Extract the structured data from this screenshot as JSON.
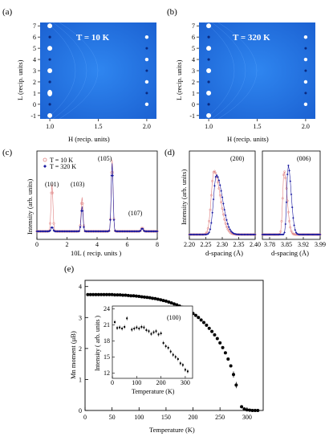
{
  "figure": {
    "panels": {
      "a": {
        "label": "(a)",
        "annotation": "T = 10 K",
        "xlabel": "H (recip. units)",
        "ylabel": "L (recip. units)",
        "xticks": [
          "1.0",
          "1.5",
          "2.0"
        ],
        "yticks": [
          "-1",
          "0",
          "1",
          "2",
          "3",
          "4",
          "5",
          "6",
          "7"
        ]
      },
      "b": {
        "label": "(b)",
        "annotation": "T = 320 K",
        "xlabel": "H (recip. units)",
        "ylabel": "L (recip. units)",
        "xticks": [
          "1.0",
          "1.5",
          "2.0"
        ],
        "yticks": [
          "-1",
          "0",
          "1",
          "2",
          "3",
          "4",
          "5",
          "6",
          "7"
        ]
      },
      "c": {
        "label": "(c)",
        "xlabel": "10L ( recip. units )",
        "ylabel": "Intensity (arb. units)",
        "xticks": [
          "0",
          "2",
          "4",
          "6",
          "8"
        ],
        "legend": [
          "T = 10 K",
          "T = 320 K"
        ],
        "peak_labels": [
          "(101)",
          "(103)",
          "(105)",
          "(107)"
        ]
      },
      "d": {
        "label": "(d)",
        "left": {
          "peak_label": "(200)",
          "xlabel": "d-spacing (Å)",
          "ylabel": "Intensity (arb. units)",
          "xticks": [
            "2.20",
            "2.25",
            "2.30",
            "2.35",
            "2.40"
          ]
        },
        "right": {
          "peak_label": "(006)",
          "xlabel": "d-spacing (Å)",
          "xticks": [
            "3.78",
            "3.85",
            "3.92",
            "3.99"
          ]
        }
      },
      "e": {
        "label": "(e)",
        "xlabel": "Temperature (K)",
        "ylabel": "Mn moment (μB)",
        "xticks": [
          "0",
          "50",
          "100",
          "150",
          "200",
          "250",
          "300"
        ],
        "yticks": [
          "0",
          "1",
          "2",
          "3",
          "4"
        ],
        "inset": {
          "peak_label": "(100)",
          "xlabel": "Temperature (K)",
          "ylabel": "Intensity ( arb. units )",
          "xticks": [
            "0",
            "100",
            "200",
            "300"
          ],
          "yticks": [
            "12",
            "15",
            "18",
            "21",
            "24"
          ]
        }
      }
    },
    "colors": {
      "map_bg": "#1f6fe0",
      "t10": "#e08080",
      "t320": "#1a1aa0",
      "moment": "#000000"
    }
  },
  "chart_data": [
    {
      "type": "scatter",
      "panel": "e",
      "title": "",
      "xlabel": "Temperature (K)",
      "ylabel": "Mn moment (μB)",
      "xlim": [
        0,
        330
      ],
      "ylim": [
        0,
        4.2
      ],
      "x": [
        5,
        10,
        15,
        20,
        25,
        30,
        35,
        40,
        45,
        50,
        55,
        60,
        65,
        70,
        75,
        80,
        85,
        90,
        95,
        100,
        105,
        110,
        115,
        120,
        125,
        130,
        135,
        140,
        145,
        150,
        155,
        160,
        165,
        170,
        175,
        180,
        185,
        190,
        195,
        200,
        205,
        210,
        215,
        220,
        225,
        230,
        235,
        240,
        245,
        250,
        255,
        260,
        265,
        270,
        275,
        280,
        290,
        295,
        300,
        305,
        310,
        315,
        320
      ],
      "y": [
        3.74,
        3.74,
        3.74,
        3.74,
        3.74,
        3.74,
        3.74,
        3.74,
        3.74,
        3.74,
        3.73,
        3.73,
        3.73,
        3.72,
        3.72,
        3.71,
        3.7,
        3.7,
        3.69,
        3.68,
        3.67,
        3.66,
        3.65,
        3.64,
        3.62,
        3.61,
        3.59,
        3.57,
        3.55,
        3.53,
        3.5,
        3.47,
        3.44,
        3.41,
        3.37,
        3.33,
        3.29,
        3.24,
        3.19,
        3.13,
        3.07,
        3.0,
        2.92,
        2.84,
        2.75,
        2.65,
        2.55,
        2.44,
        2.32,
        2.18,
        2.03,
        1.86,
        1.66,
        1.44,
        1.16,
        0.82,
        0.12,
        0.05,
        0.02,
        0.01,
        0.0,
        0.0,
        0.0
      ]
    },
    {
      "type": "scatter",
      "panel": "e-inset",
      "title": "",
      "xlabel": "Temperature (K)",
      "ylabel": "Intensity ( arb. units )",
      "xlim": [
        0,
        330
      ],
      "ylim": [
        11,
        24.5
      ],
      "x": [
        10,
        20,
        30,
        40,
        50,
        60,
        80,
        90,
        100,
        110,
        120,
        130,
        140,
        150,
        160,
        170,
        180,
        190,
        200,
        210,
        220,
        230,
        240,
        250,
        260,
        270,
        280,
        290,
        300,
        310
      ],
      "y": [
        21.5,
        20.4,
        20.5,
        20.3,
        20.6,
        22.2,
        20.1,
        20.3,
        20.5,
        20.3,
        20.6,
        20.5,
        20.0,
        19.8,
        19.3,
        19.6,
        19.8,
        19.2,
        19.4,
        17.6,
        17.0,
        16.7,
        16.0,
        15.4,
        15.0,
        14.6,
        13.8,
        13.5,
        12.6,
        12.3
      ]
    },
    {
      "type": "line",
      "panel": "c",
      "title": "",
      "xlabel": "10L ( recip. units )",
      "ylabel": "Intensity (arb. units)",
      "xlim": [
        0,
        8
      ],
      "series": [
        {
          "name": "T = 10 K",
          "peaks": [
            [
              1.0,
              0.62
            ],
            [
              3.0,
              0.45
            ],
            [
              5.0,
              0.95
            ],
            [
              7.0,
              0.05
            ]
          ]
        },
        {
          "name": "T = 320 K",
          "peaks": [
            [
              1.0,
              0.06
            ],
            [
              3.0,
              0.33
            ],
            [
              5.0,
              0.9
            ],
            [
              7.0,
              0.04
            ]
          ]
        }
      ]
    },
    {
      "type": "line",
      "panel": "d-left",
      "title": "",
      "xlabel": "d-spacing (Å)",
      "ylabel": "Intensity (arb. units)",
      "xlim": [
        2.2,
        2.4
      ],
      "series": [
        {
          "name": "T = 10 K",
          "peak": [
            2.275,
            0.9
          ]
        },
        {
          "name": "T = 320 K",
          "peak": [
            2.282,
            0.84
          ]
        }
      ]
    },
    {
      "type": "line",
      "panel": "d-right",
      "title": "",
      "xlabel": "d-spacing (Å)",
      "xlim": [
        3.75,
        3.99
      ],
      "series": [
        {
          "name": "T = 10 K",
          "peak": [
            3.84,
            0.9
          ]
        },
        {
          "name": "T = 320 K",
          "peak": [
            3.857,
            0.98
          ]
        }
      ]
    }
  ]
}
